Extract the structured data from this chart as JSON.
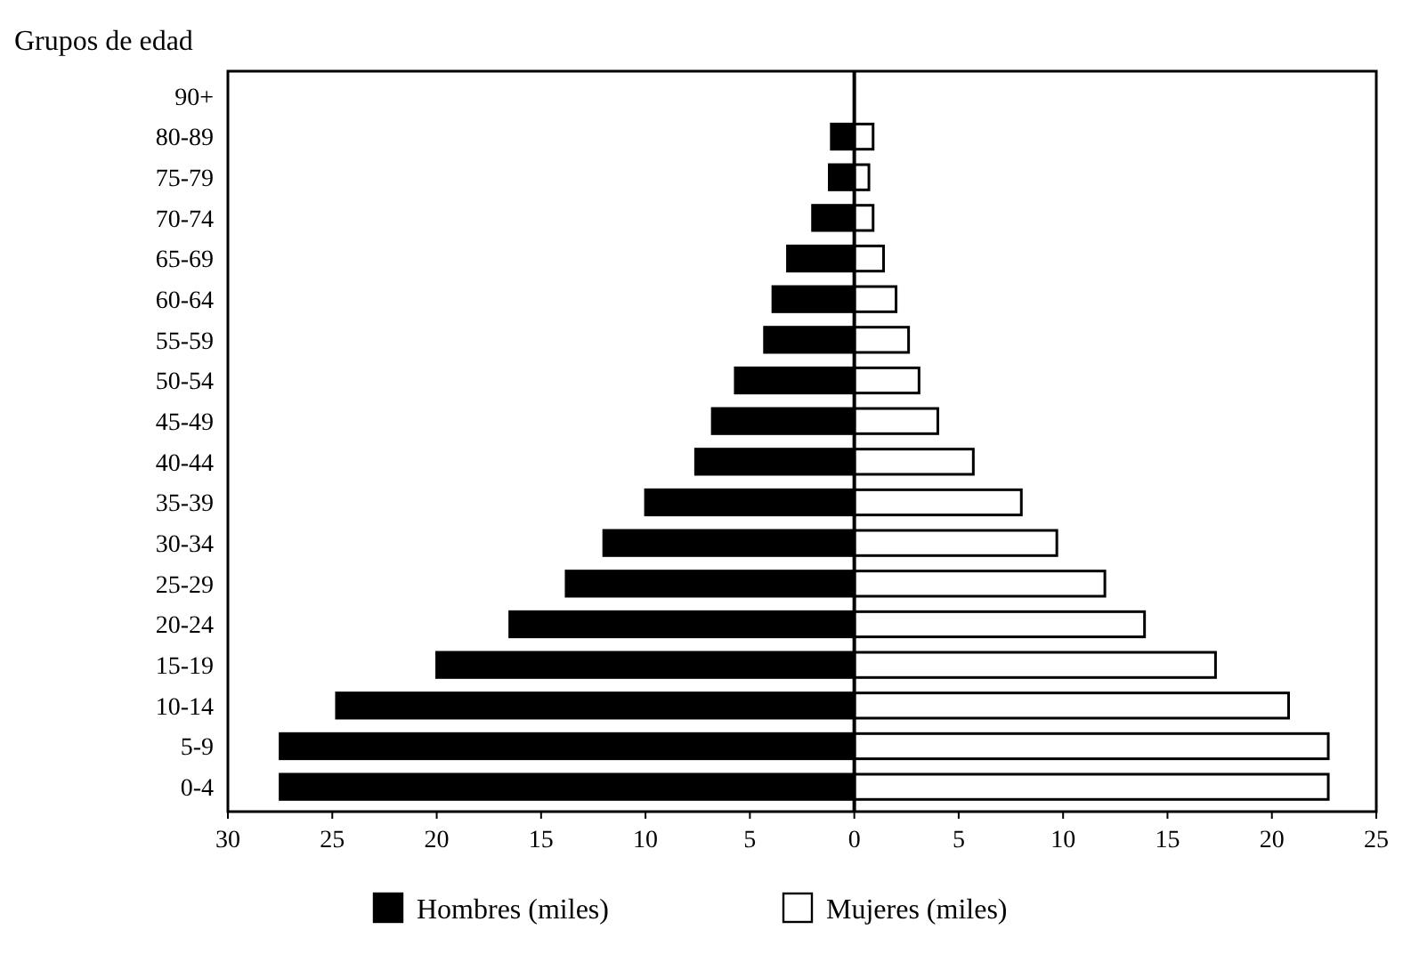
{
  "chart_data": {
    "type": "bar",
    "orientation": "horizontal",
    "stacked": true,
    "ylabel": "Grupos de edad",
    "categories": [
      "90+",
      "80-89",
      "75-79",
      "70-74",
      "65-69",
      "60-64",
      "55-59",
      "50-54",
      "45-49",
      "40-44",
      "35-39",
      "30-34",
      "25-29",
      "20-24",
      "15-19",
      "10-14",
      "5-9",
      "0-4"
    ],
    "series": [
      {
        "name": "Hombres (miles)",
        "color": "#000000",
        "values": [
          null,
          -1.1,
          -1.2,
          -2,
          -3.2,
          -3.9,
          -4.3,
          -5.7,
          -6.8,
          -7.6,
          -10,
          -12,
          -13.8,
          -16.5,
          -20,
          -24.8,
          -27.5,
          -27.5
        ]
      },
      {
        "name": "Mujeres (miles)",
        "color": "#ffffff",
        "values": [
          null,
          0.9,
          0.7,
          0.9,
          1.4,
          2,
          2.6,
          3.1,
          4,
          5.7,
          8,
          9.7,
          12,
          13.9,
          17.3,
          20.8,
          22.7,
          22.7
        ]
      }
    ],
    "xlim": [
      -30,
      25
    ],
    "xticks": [
      {
        "value": -30,
        "label": "30"
      },
      {
        "value": -25,
        "label": "25"
      },
      {
        "value": -20,
        "label": "20"
      },
      {
        "value": -15,
        "label": "15"
      },
      {
        "value": -10,
        "label": "10"
      },
      {
        "value": -5,
        "label": "5"
      },
      0,
      5,
      10,
      15,
      20,
      25
    ],
    "legend": "bottom"
  }
}
